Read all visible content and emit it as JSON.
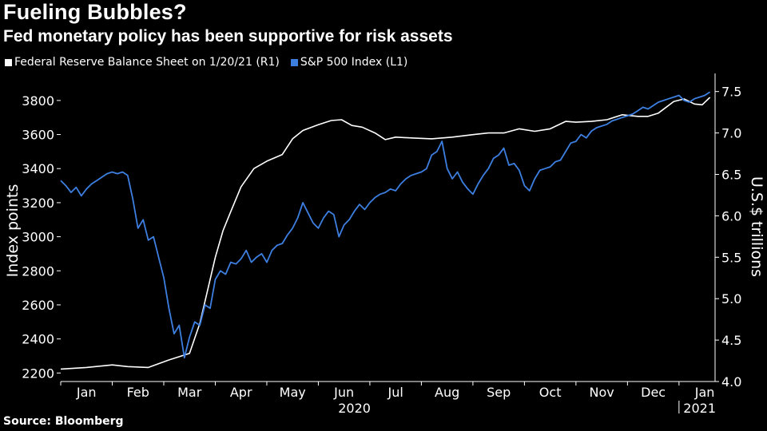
{
  "title": "Fueling Bubbles?",
  "subtitle": "Fed monetary policy has been supportive for risk assets",
  "source": "Source: Bloomberg",
  "colors": {
    "background": "#000000",
    "fed_line": "#ffffff",
    "spx_line": "#3d7fe0",
    "axis": "#ffffff"
  },
  "chart_data": {
    "type": "line",
    "title": "Fueling Bubbles?",
    "legend": [
      {
        "name": "Federal Reserve Balance Sheet on 1/20/21 (R1)",
        "color": "#ffffff"
      },
      {
        "name": "S&P 500 Index (L1)",
        "color": "#3d7fe0"
      }
    ],
    "legend_position": "top-left",
    "xlim": [
      0,
      12.7
    ],
    "x_tick_labels": [
      {
        "label": "Jan",
        "x": 0.5
      },
      {
        "label": "Feb",
        "x": 1.5
      },
      {
        "label": "Mar",
        "x": 2.5
      },
      {
        "label": "Apr",
        "x": 3.5
      },
      {
        "label": "May",
        "x": 4.5
      },
      {
        "label": "Jun",
        "x": 5.5
      },
      {
        "label": "Jul",
        "x": 6.5
      },
      {
        "label": "Aug",
        "x": 7.5
      },
      {
        "label": "Sep",
        "x": 8.5
      },
      {
        "label": "Oct",
        "x": 9.5
      },
      {
        "label": "Nov",
        "x": 10.5
      },
      {
        "label": "Dec",
        "x": 11.5
      },
      {
        "label": "Jan",
        "x": 12.5
      }
    ],
    "year_labels": [
      {
        "label": "2020",
        "x": 5.7
      },
      {
        "label": "2021",
        "x": 12.4
      }
    ],
    "year_divider_x": 12.0,
    "ylabel_left": "Index points",
    "ylabel_right": "U.S.$ trillions",
    "ylim_left": [
      2150,
      3940
    ],
    "ylim_right": [
      4.0,
      7.68
    ],
    "yticks_left": [
      2200,
      2400,
      2600,
      2800,
      3000,
      3200,
      3400,
      3600,
      3800
    ],
    "yticks_right": [
      4.0,
      4.5,
      5.0,
      5.5,
      6.0,
      6.5,
      7.0,
      7.5
    ],
    "series": [
      {
        "name": "Federal Reserve Balance Sheet on 1/20/21 (R1)",
        "axis": "right",
        "x": [
          0,
          0.5,
          1.0,
          1.3,
          1.7,
          2.1,
          2.5,
          2.7,
          2.85,
          3.0,
          3.15,
          3.3,
          3.5,
          3.75,
          4.0,
          4.3,
          4.5,
          4.7,
          5.0,
          5.25,
          5.45,
          5.65,
          5.85,
          6.1,
          6.3,
          6.5,
          6.8,
          7.2,
          7.6,
          8.0,
          8.3,
          8.6,
          8.9,
          9.2,
          9.5,
          9.8,
          10.0,
          10.3,
          10.6,
          10.9,
          11.2,
          11.4,
          11.6,
          11.9,
          12.1,
          12.3,
          12.45,
          12.6
        ],
        "values": [
          4.15,
          4.17,
          4.2,
          4.18,
          4.17,
          4.26,
          4.34,
          4.7,
          5.1,
          5.5,
          5.82,
          6.05,
          6.35,
          6.57,
          6.66,
          6.74,
          6.93,
          7.03,
          7.1,
          7.15,
          7.16,
          7.09,
          7.07,
          7.0,
          6.92,
          6.95,
          6.94,
          6.93,
          6.95,
          6.98,
          7.0,
          7.0,
          7.05,
          7.02,
          7.05,
          7.14,
          7.13,
          7.14,
          7.16,
          7.22,
          7.2,
          7.2,
          7.24,
          7.38,
          7.41,
          7.35,
          7.34,
          7.43
        ]
      },
      {
        "name": "S&P 500 Index (L1)",
        "axis": "left",
        "x": [
          0,
          0.1,
          0.2,
          0.3,
          0.4,
          0.5,
          0.6,
          0.7,
          0.8,
          0.9,
          1.0,
          1.1,
          1.2,
          1.3,
          1.4,
          1.5,
          1.6,
          1.7,
          1.8,
          1.9,
          2.0,
          2.1,
          2.2,
          2.3,
          2.4,
          2.5,
          2.6,
          2.7,
          2.8,
          2.9,
          3.0,
          3.1,
          3.2,
          3.3,
          3.4,
          3.5,
          3.6,
          3.7,
          3.8,
          3.9,
          4.0,
          4.1,
          4.2,
          4.3,
          4.4,
          4.5,
          4.6,
          4.7,
          4.8,
          4.9,
          5.0,
          5.1,
          5.2,
          5.3,
          5.4,
          5.5,
          5.6,
          5.7,
          5.8,
          5.9,
          6.0,
          6.1,
          6.2,
          6.3,
          6.4,
          6.5,
          6.6,
          6.7,
          6.8,
          6.9,
          7.0,
          7.1,
          7.2,
          7.3,
          7.4,
          7.5,
          7.6,
          7.7,
          7.8,
          7.9,
          8.0,
          8.1,
          8.2,
          8.3,
          8.4,
          8.5,
          8.6,
          8.7,
          8.8,
          8.9,
          9.0,
          9.1,
          9.2,
          9.3,
          9.4,
          9.5,
          9.6,
          9.7,
          9.8,
          9.9,
          10.0,
          10.1,
          10.2,
          10.3,
          10.4,
          10.5,
          10.6,
          10.7,
          10.8,
          10.9,
          11.0,
          11.1,
          11.2,
          11.3,
          11.4,
          11.5,
          11.6,
          11.7,
          11.8,
          11.9,
          12.0,
          12.1,
          12.2,
          12.3,
          12.4,
          12.5,
          12.6
        ],
        "values": [
          3330,
          3300,
          3260,
          3290,
          3240,
          3280,
          3310,
          3330,
          3350,
          3370,
          3380,
          3370,
          3380,
          3360,
          3220,
          3050,
          3100,
          2980,
          3000,
          2880,
          2760,
          2580,
          2430,
          2480,
          2290,
          2410,
          2500,
          2480,
          2600,
          2580,
          2750,
          2800,
          2780,
          2850,
          2840,
          2870,
          2920,
          2850,
          2880,
          2900,
          2850,
          2920,
          2950,
          2960,
          3010,
          3050,
          3110,
          3200,
          3140,
          3080,
          3050,
          3110,
          3150,
          3130,
          3000,
          3070,
          3100,
          3150,
          3190,
          3160,
          3200,
          3230,
          3250,
          3260,
          3280,
          3270,
          3310,
          3340,
          3360,
          3370,
          3380,
          3400,
          3480,
          3500,
          3560,
          3400,
          3340,
          3380,
          3320,
          3280,
          3250,
          3310,
          3360,
          3400,
          3460,
          3480,
          3520,
          3420,
          3430,
          3390,
          3300,
          3270,
          3340,
          3390,
          3400,
          3410,
          3440,
          3450,
          3500,
          3550,
          3560,
          3600,
          3580,
          3620,
          3640,
          3650,
          3660,
          3680,
          3690,
          3700,
          3710,
          3720,
          3740,
          3760,
          3750,
          3770,
          3790,
          3800,
          3810,
          3820,
          3830,
          3800,
          3790,
          3810,
          3820,
          3830,
          3850
        ]
      }
    ]
  }
}
